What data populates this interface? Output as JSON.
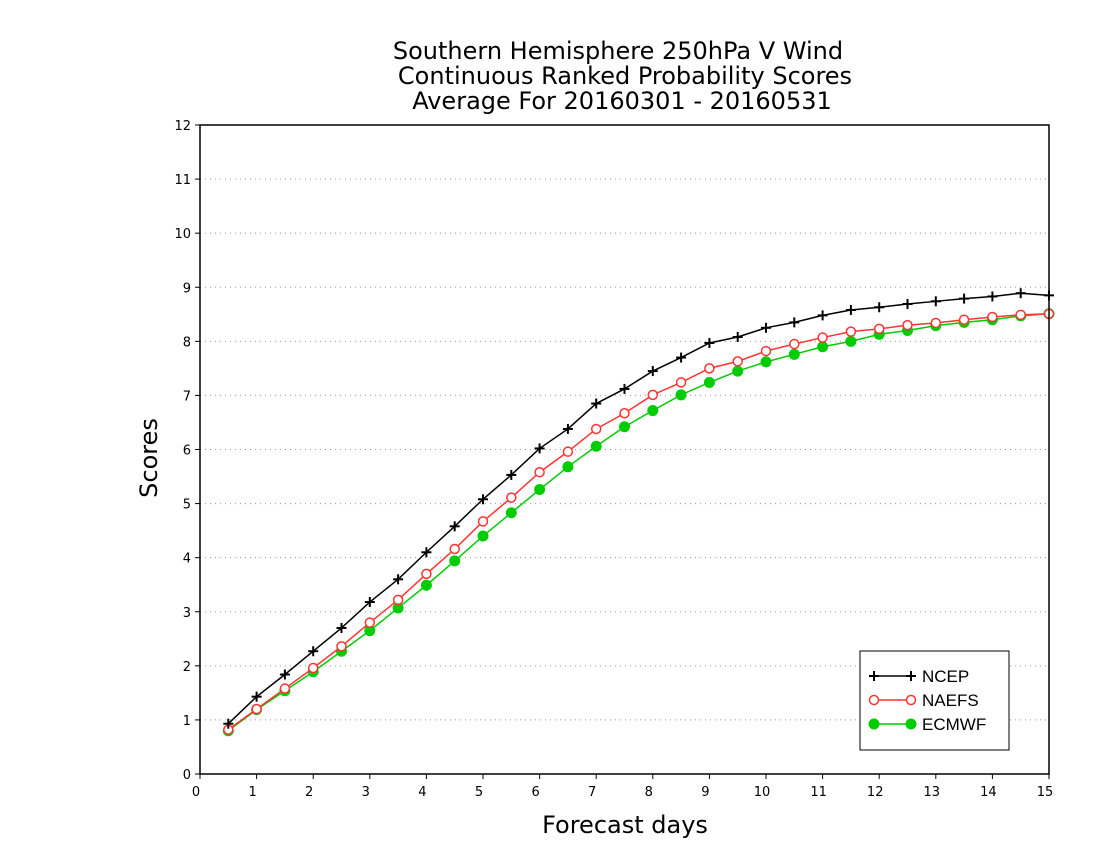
{
  "chart_data": {
    "type": "line",
    "title": [
      "Southern Hemisphere 250hPa V Wind",
      "Continuous Ranked Probability Scores",
      "Average For 20160301 - 20160531"
    ],
    "xlabel": "Forecast days",
    "ylabel": "Scores",
    "xlim": [
      0,
      15
    ],
    "ylim": [
      0,
      12
    ],
    "xticks": [
      "0",
      "1",
      "2",
      "3",
      "4",
      "5",
      "6",
      "7",
      "8",
      "9",
      "10",
      "11",
      "12",
      "13",
      "14",
      "15"
    ],
    "yticks": [
      "0",
      "1",
      "2",
      "3",
      "4",
      "5",
      "6",
      "7",
      "8",
      "9",
      "10",
      "11",
      "12"
    ],
    "grid": "horizontal dotted",
    "legend_position": "bottom-right",
    "x": [
      0.5,
      1.0,
      1.5,
      2.0,
      2.5,
      3.0,
      3.5,
      4.0,
      4.5,
      5.0,
      5.5,
      6.0,
      6.5,
      7.0,
      7.5,
      8.0,
      8.5,
      9.0,
      9.5,
      10.0,
      10.5,
      11.0,
      11.5,
      12.0,
      12.5,
      13.0,
      13.5,
      14.0,
      14.5,
      15.0
    ],
    "series": [
      {
        "name": "NCEP",
        "color": "#000000",
        "marker": "plus",
        "values": [
          0.93,
          1.43,
          1.84,
          2.27,
          2.7,
          3.18,
          3.6,
          4.1,
          4.58,
          5.08,
          5.53,
          6.02,
          6.38,
          6.85,
          7.12,
          7.45,
          7.7,
          7.97,
          8.08,
          8.25,
          8.35,
          8.48,
          8.58,
          8.63,
          8.69,
          8.74,
          8.79,
          8.83,
          8.89,
          8.85
        ]
      },
      {
        "name": "NAEFS",
        "color": "#ff3333",
        "marker": "open-circle",
        "values": [
          0.82,
          1.2,
          1.58,
          1.96,
          2.36,
          2.8,
          3.22,
          3.7,
          4.16,
          4.67,
          5.11,
          5.58,
          5.96,
          6.38,
          6.67,
          7.01,
          7.24,
          7.5,
          7.63,
          7.82,
          7.95,
          8.07,
          8.18,
          8.23,
          8.3,
          8.34,
          8.4,
          8.45,
          8.49,
          8.51
        ]
      },
      {
        "name": "ECMWF",
        "color": "#00cc00",
        "marker": "filled-circle",
        "values": [
          0.8,
          1.19,
          1.54,
          1.89,
          2.27,
          2.65,
          3.07,
          3.49,
          3.94,
          4.4,
          4.83,
          5.26,
          5.68,
          6.06,
          6.42,
          6.72,
          7.01,
          7.24,
          7.45,
          7.62,
          7.76,
          7.9,
          8.0,
          8.13,
          8.2,
          8.29,
          8.35,
          8.4,
          8.47,
          8.51
        ]
      }
    ]
  }
}
